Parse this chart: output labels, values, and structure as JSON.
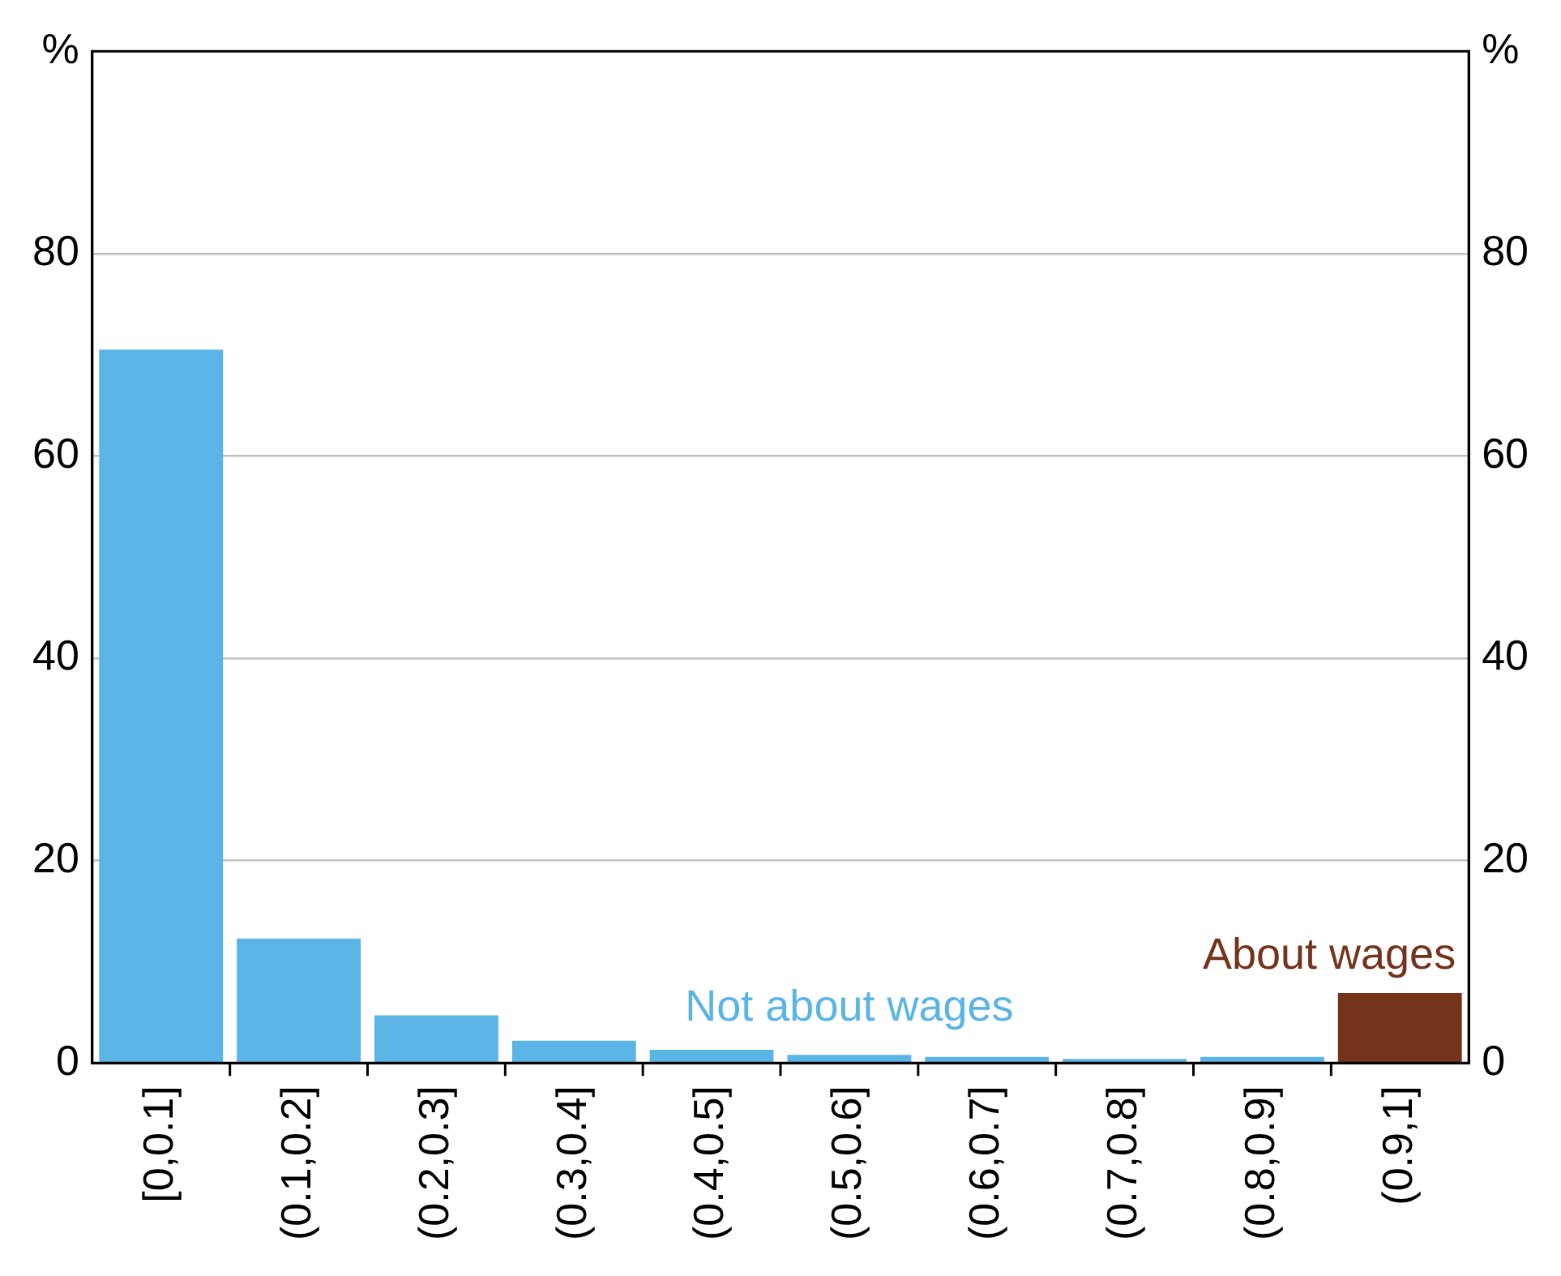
{
  "chart_data": {
    "type": "bar",
    "categories": [
      "[0,0.1]",
      "(0.1,0.2]",
      "(0.2,0.3]",
      "(0.3,0.4]",
      "(0.4,0.5]",
      "(0.5,0.6]",
      "(0.6,0.7]",
      "(0.7,0.8]",
      "(0.8,0.9]",
      "(0.9,1]"
    ],
    "values": [
      70.5,
      12.3,
      4.7,
      2.2,
      1.3,
      0.8,
      0.6,
      0.4,
      0.6,
      6.9
    ],
    "colors": [
      "#5ab4e5",
      "#5ab4e5",
      "#5ab4e5",
      "#5ab4e5",
      "#5ab4e5",
      "#5ab4e5",
      "#5ab4e5",
      "#5ab4e5",
      "#5ab4e5",
      "#74331b"
    ],
    "ylim": [
      0,
      100
    ],
    "yticks": [
      0,
      20,
      40,
      60,
      80,
      {
        "value": 100,
        "label": "%"
      }
    ],
    "y2lim": [
      0,
      100
    ],
    "y2ticks": [
      0,
      20,
      40,
      60,
      80,
      {
        "value": 100,
        "label": "%"
      }
    ],
    "grid": "y",
    "legend": false,
    "annotations": [
      "Not about wages",
      "About wages"
    ]
  }
}
